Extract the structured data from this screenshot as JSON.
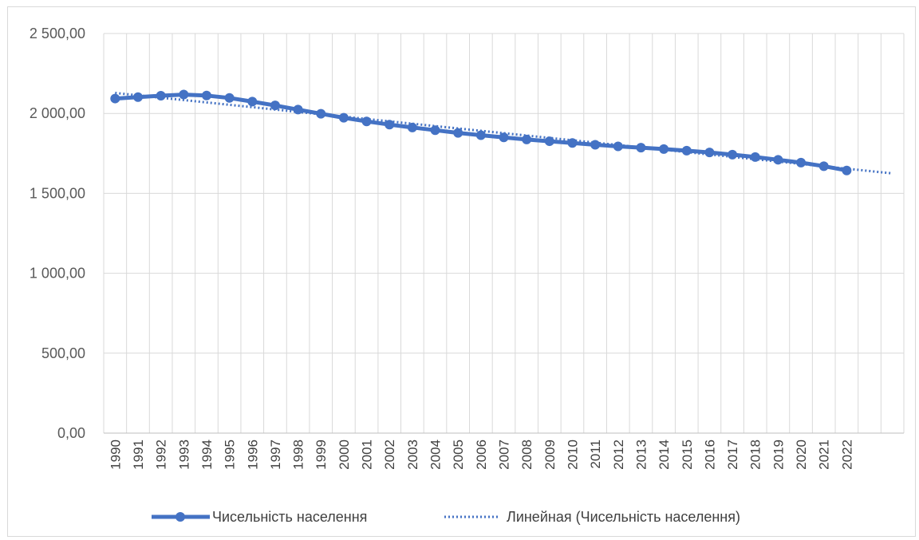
{
  "chart_data": {
    "type": "line",
    "title": "",
    "xlabel": "",
    "ylabel": "",
    "x": [
      "1990",
      "1991",
      "1992",
      "1993",
      "1994",
      "1995",
      "1996",
      "1997",
      "1998",
      "1999",
      "2000",
      "2001",
      "2002",
      "2003",
      "2004",
      "2005",
      "2006",
      "2007",
      "2008",
      "2009",
      "2010",
      "2011",
      "2012",
      "2013",
      "2014",
      "2015",
      "2016",
      "2017",
      "2018",
      "2019",
      "2020",
      "2021",
      "2022"
    ],
    "ylim": [
      0,
      2500
    ],
    "yticks": [
      0,
      500,
      1000,
      1500,
      2000,
      2500
    ],
    "ytick_labels": [
      "0,00",
      "500,00",
      "1 000,00",
      "1 500,00",
      "2 000,00",
      "2 500,00"
    ],
    "grid": true,
    "legend_position": "bottom",
    "series": [
      {
        "name": "Чисельність населення",
        "color": "#4472C4",
        "marker": "circle",
        "values": [
          2093,
          2102,
          2111,
          2118,
          2112,
          2097,
          2074,
          2050,
          2024,
          1998,
          1973,
          1950,
          1930,
          1912,
          1895,
          1878,
          1864,
          1850,
          1837,
          1826,
          1815,
          1804,
          1794,
          1786,
          1777,
          1767,
          1756,
          1742,
          1727,
          1710,
          1692,
          1670,
          1643
        ]
      }
    ],
    "trendline": {
      "name": "Линейная (Чисельність населення)",
      "color": "#4472C4",
      "style": "dotted",
      "type": "linear",
      "start_value": 2128,
      "slope_per_year": -14.8,
      "forecast_periods": 2
    }
  }
}
